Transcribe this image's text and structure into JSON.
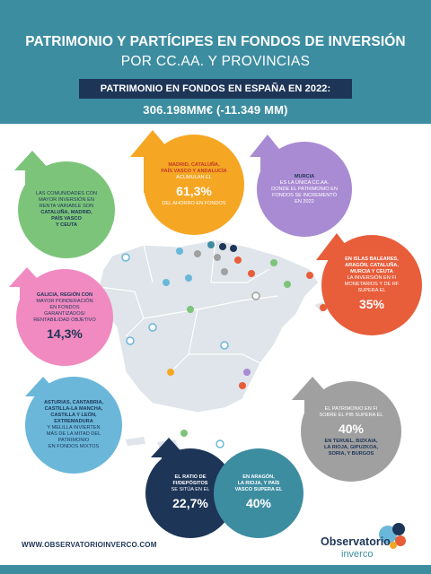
{
  "header": {
    "title": "PATRIMONIO Y PARTÍCIPES EN FONDOS DE INVERSIÓN",
    "subtitle": "POR CC.AA. Y PROVINCIAS",
    "band_label": "PATRIMONIO EN FONDOS EN ESPAÑA EN 2022:",
    "total": "306.198MM€  (-11.349 MM)"
  },
  "bubbles": {
    "madrid": {
      "line1": "MADRID, CATALUÑA,",
      "line2": "PAÍS VASCO Y ANDALUCÍA",
      "line3": "ACUMULAN EL",
      "value": "61,3%",
      "line4": "DEL AHORRO EN FONDOS",
      "color": "#f5a623"
    },
    "murcia": {
      "line1": "MURCIA",
      "line2": "ES LA ÚNICA CC.AA.",
      "line3": "DONDE EL PATRIMONIO EN",
      "line4": "FONDOS SE INCREMENTÓ",
      "line5": "EN 2022",
      "color": "#a98bd3"
    },
    "comunidades": {
      "line1": "LAS COMUNIDADES CON",
      "line2": "MAYOR INVERSIÓN EN",
      "line3": "RENTA VARIABLE SON",
      "line4": "CATALUÑA, MADRID,",
      "line5": "PAÍS VASCO",
      "line6": "Y CEUTA",
      "color": "#7cc47a"
    },
    "baleares": {
      "line1": "EN ISLAS BALEARES,",
      "line2": "ARAGÓN, CATALUÑA,",
      "line3": "MURCIA Y CEUTA",
      "line4": "LA INVERSIÓN EN FI",
      "line5": "MONETARIOS Y DE RF",
      "line6": "SUPERA EL",
      "value": "35%",
      "color": "#e85d3a"
    },
    "galicia": {
      "line1": "GALICIA, REGIÓN CON",
      "line2": "MAYOR PONDERACIÓN",
      "line3": "EN FONDOS",
      "line4": "GARANTIZADOS/",
      "line5": "RENTABILIDAD OBJETIVO",
      "value": "14,3%",
      "color": "#f08ac0"
    },
    "asturias": {
      "line1": "ASTURIAS, CANTABRIA,",
      "line2": "CASTILLA-LA MANCHA,",
      "line3": "CASTILLA Y LEÓN,",
      "line4": "EXTREMADURA",
      "line5": "Y MELILLA INVIERTEN",
      "line6": "MÁS DE LA MITAD DEL",
      "line7": "PATRIMONIO",
      "line8": "EN FONDOS MIXTOS",
      "color": "#6ab7d9"
    },
    "pib": {
      "line1": "EL PATRIMONIO EN FI",
      "line2": "SOBRE EL PIB SUPERA EL",
      "value": "40%",
      "line3": "EN TERUEL, BIZKAIA,",
      "line4": "LA RIOJA, GIPUZKOA,",
      "line5": "SORIA, Y BURGOS",
      "color": "#a0a0a0"
    },
    "ratio": {
      "line1": "EL RATIO DE",
      "line2": "FI/DEPÓSITOS",
      "line3": "SE SITÚA EN EL",
      "value": "22,7%",
      "color": "#1d3557"
    },
    "aragon": {
      "line1": "EN ARAGÓN,",
      "line2": "LA RIOJA, Y PAÍS",
      "line3": "VASCO SUPERA EL",
      "value": "40%",
      "color": "#3d8da1"
    }
  },
  "footer": {
    "url": "WWW.OBSERVATORIOINVERCO.COM",
    "logo_main": "Observatorio",
    "logo_sub": "inverco"
  }
}
